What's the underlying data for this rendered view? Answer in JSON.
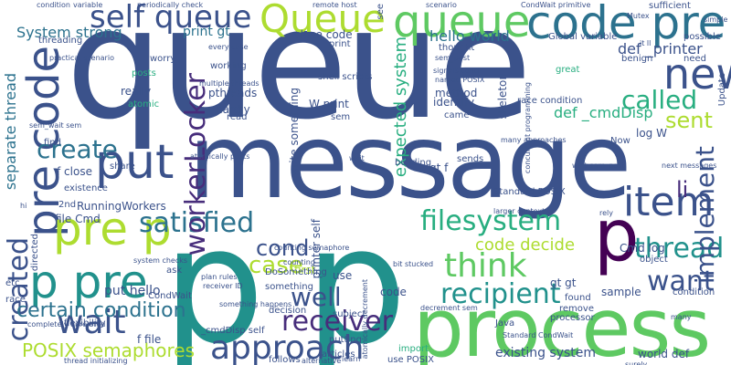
{
  "palette": {
    "dark_purple": "#440154",
    "purple": "#472d7b",
    "indigo": "#3b528b",
    "slate_blue": "#2c728e",
    "teal": "#21918c",
    "sea_green": "#28ae80",
    "green": "#5ec962",
    "lime": "#addc30",
    "yellow": "#fde725"
  },
  "words": [
    "queue",
    "message",
    "p p",
    "process",
    "queue",
    "code pre",
    "Queue",
    "self queue",
    "pre code",
    "new",
    "put",
    "pre p",
    "p pre",
    "think",
    "item",
    "approach",
    "satisfied",
    "wait",
    "filesystem",
    "receiver",
    "recipient",
    "thread",
    "want",
    "created",
    "create",
    "workerLocker",
    "implement",
    "called",
    "cond",
    "case",
    "well",
    "certain condition",
    "code decide",
    "sent",
    "li",
    "p",
    "POSIX semaphores",
    "System strong",
    "hello world",
    "print gt",
    "def _printer",
    "def _cmdDisp",
    "expected system",
    "separate thread",
    "pthreads",
    "really",
    "hardly",
    "read",
    "posts",
    "atomic",
    "write something",
    "W print",
    "close code",
    "method",
    "identify",
    "came",
    "skeleton",
    "log W",
    "gt f",
    "building",
    "f close",
    "file Cmd",
    "RunningWorkers",
    "CondWait",
    "put hello",
    "Cmd log",
    "gt gt",
    "code",
    "sample",
    "condition",
    "existing system",
    "world def",
    "use POSIX",
    "import",
    "first",
    "printer self",
    "_cmdDisp self",
    "DoSomething",
    "f file",
    "2nd",
    "Global variable",
    "thought",
    "possible",
    "sufficient",
    "Update",
    "Now",
    "great",
    "processor",
    "remove",
    "found",
    "putting",
    "articles",
    "learn",
    "decision",
    "alternative",
    "follows",
    "sends",
    "signals cond",
    "named POSIX",
    "Java",
    "share",
    "find",
    "ask",
    "etc",
    "race",
    "flexibility",
    "existence",
    "directed",
    "worry",
    "working",
    "print",
    "sem",
    "threading",
    "need",
    "benign",
    "shell scripts",
    "race condition",
    "object",
    "counting semaphore",
    "completely unrelated",
    "Standard POSIX",
    "wait sem_post",
    "system checks",
    "plan rules",
    "bit stucked",
    "atomically posts",
    "concurrent programming",
    "sem_wait sem",
    "decrement sem",
    "many approaches",
    "variable",
    "condition",
    "scenario",
    "remote host",
    "sem_post",
    "practical scenario",
    "every case",
    "periodically check",
    "CondWait primitive",
    "larger context",
    "receiver ID",
    "multiple threads",
    "atomically decrement",
    "Standard CondWait",
    "something",
    "something happens",
    "counting",
    "next messages",
    "Mutex",
    "hi",
    "it ll",
    "rely",
    "wait",
    "see",
    "thread initializing",
    "subject",
    "use",
    "many",
    "surely",
    "simple"
  ]
}
